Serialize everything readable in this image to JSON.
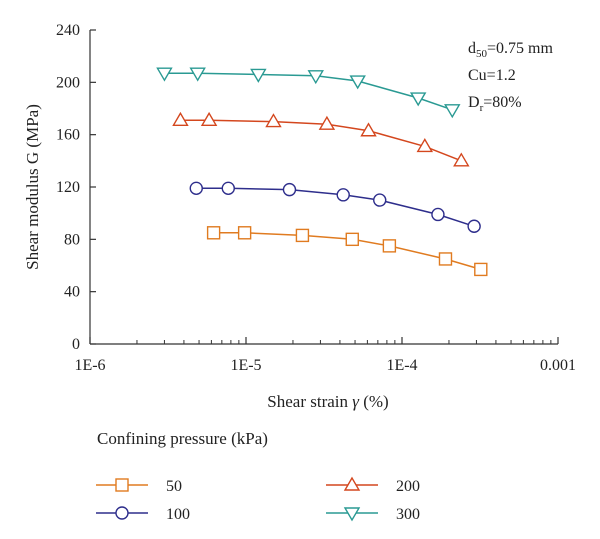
{
  "chart_data": {
    "type": "line",
    "xlabel": "Shear strain",
    "xlabel_symbol": "γ",
    "xlabel_unit": "(%)",
    "ylabel": "Shear modulus G (MPa)",
    "x_scale": "log",
    "xlim": [
      1e-06,
      0.001
    ],
    "ylim": [
      0,
      240
    ],
    "x_ticks": [
      {
        "value": 1e-06,
        "label": "1E-6"
      },
      {
        "value": 1e-05,
        "label": "1E-5"
      },
      {
        "value": 0.0001,
        "label": "1E-4"
      },
      {
        "value": 0.001,
        "label": "0.001"
      }
    ],
    "y_ticks": [
      0,
      40,
      80,
      120,
      160,
      200,
      240
    ],
    "grid": false,
    "legend_title": "Confining pressure (kPa)",
    "legend_position": "bottom",
    "annotations": [
      {
        "base": "d",
        "sub": "50",
        "rest": "=0.75 mm"
      },
      {
        "base": "Cu=1.2",
        "sub": "",
        "rest": ""
      },
      {
        "base": "D",
        "sub": "r",
        "rest": "=80%"
      }
    ],
    "series": [
      {
        "name": "50",
        "marker": "square",
        "color": "#E07B20",
        "x": [
          6.2e-06,
          9.8e-06,
          2.3e-05,
          4.8e-05,
          8.3e-05,
          0.00019,
          0.00032
        ],
        "y": [
          85,
          85,
          83,
          80,
          75,
          65,
          57
        ]
      },
      {
        "name": "100",
        "marker": "circle",
        "color": "#2E2E8C",
        "x": [
          4.8e-06,
          7.7e-06,
          1.9e-05,
          4.2e-05,
          7.2e-05,
          0.00017,
          0.00029
        ],
        "y": [
          119,
          119,
          118,
          114,
          110,
          99,
          90
        ]
      },
      {
        "name": "200",
        "marker": "triangle-up",
        "color": "#D4471E",
        "x": [
          3.8e-06,
          5.8e-06,
          1.5e-05,
          3.3e-05,
          6.1e-05,
          0.00014,
          0.00024
        ],
        "y": [
          171,
          171,
          170,
          168,
          163,
          151,
          140
        ]
      },
      {
        "name": "300",
        "marker": "triangle-down",
        "color": "#2A9A93",
        "x": [
          3e-06,
          4.9e-06,
          1.2e-05,
          2.8e-05,
          5.2e-05,
          0.000127,
          0.00021
        ],
        "y": [
          207,
          207,
          206,
          205,
          201,
          188,
          179
        ]
      }
    ]
  }
}
